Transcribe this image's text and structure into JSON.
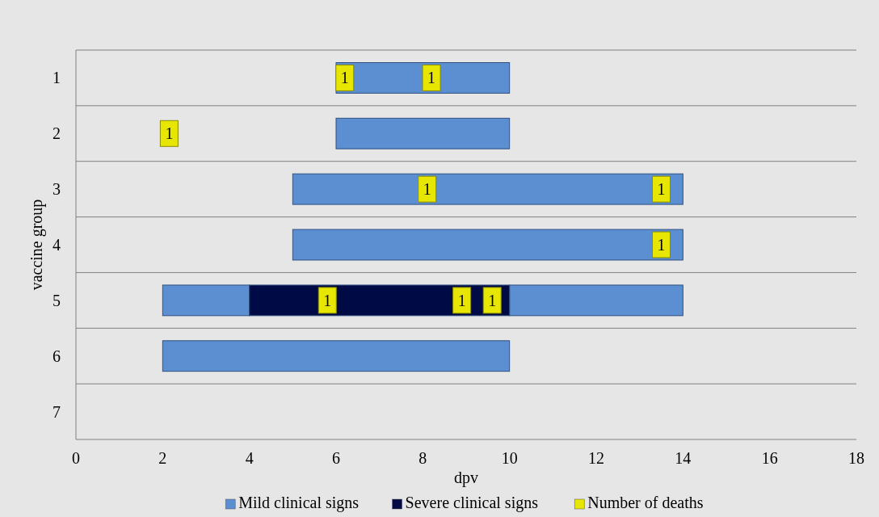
{
  "chart_data": {
    "type": "bar",
    "orientation": "horizontal",
    "xlabel": "dpv",
    "ylabel": "vaccine group",
    "categories": [
      "1",
      "2",
      "3",
      "4",
      "5",
      "6",
      "7"
    ],
    "xlim": [
      0,
      18
    ],
    "xticks": [
      0,
      2,
      4,
      6,
      8,
      10,
      12,
      14,
      16,
      18
    ],
    "grid": "y",
    "legend": "bottom",
    "marker": "square",
    "series": [
      {
        "name": "Mild clinical signs",
        "color": "#5b8fd1",
        "base": [
          6,
          6,
          5,
          5,
          2,
          2,
          null
        ],
        "values": [
          4,
          4,
          9,
          9,
          2,
          8,
          null
        ]
      },
      {
        "color": "#5b8fd1",
        "base": [
          null,
          null,
          null,
          null,
          10,
          null,
          null
        ],
        "values": [
          null,
          null,
          null,
          null,
          4,
          null,
          null
        ]
      },
      {
        "name": "Severe clinical signs",
        "color": "#000b45",
        "base": [
          null,
          null,
          null,
          null,
          4,
          null,
          null
        ],
        "values": [
          null,
          null,
          null,
          null,
          6,
          null,
          null
        ]
      },
      {
        "name": "Number of deaths",
        "type": "scatter",
        "color": "#e6e600",
        "values": [
          6.2,
          2.15,
          8.1,
          13.5,
          5.8,
          null,
          null
        ]
      },
      {
        "type": "scatter",
        "color": "#e6e600",
        "values": [
          8.2,
          null,
          13.5,
          null,
          8.9,
          null,
          null
        ]
      },
      {
        "type": "scatter",
        "color": "#e6e600",
        "values": [
          null,
          null,
          null,
          null,
          9.6,
          null,
          null
        ]
      }
    ],
    "annotations": [
      {
        "text": "1",
        "x": 6.2,
        "y": "1"
      },
      {
        "text": "1",
        "x": 8.2,
        "y": "1"
      },
      {
        "text": "1",
        "x": 2.15,
        "y": "2"
      },
      {
        "text": "1",
        "x": 8.1,
        "y": "3"
      },
      {
        "text": "1",
        "x": 13.5,
        "y": "3"
      },
      {
        "text": "1",
        "x": 13.5,
        "y": "4"
      },
      {
        "text": "1",
        "x": 5.8,
        "y": "5"
      },
      {
        "text": "1",
        "x": 8.9,
        "y": "5"
      },
      {
        "text": "1",
        "x": 9.6,
        "y": "5"
      }
    ]
  }
}
